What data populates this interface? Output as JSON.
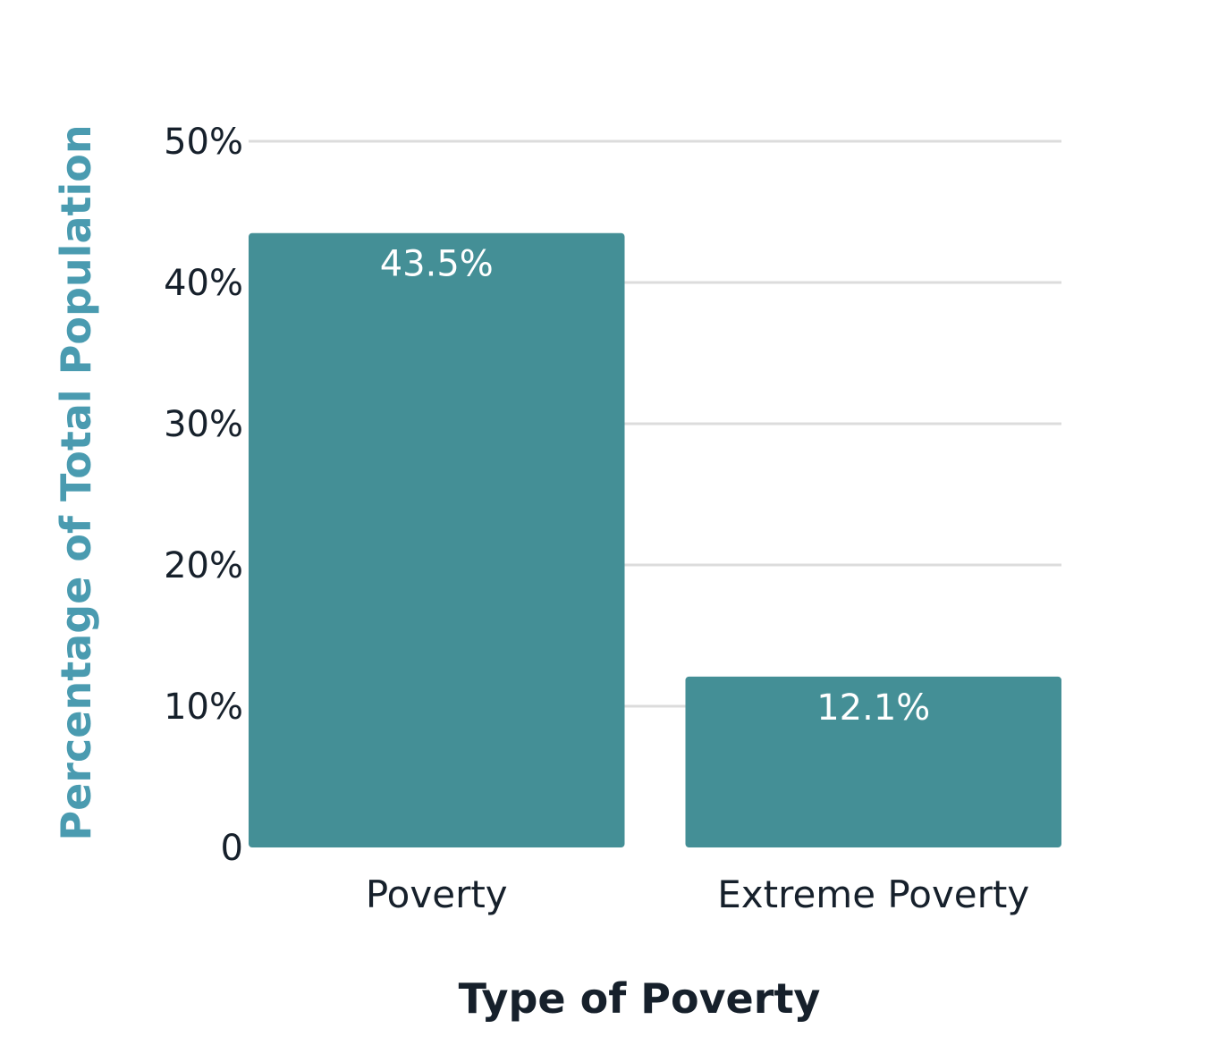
{
  "chart_data": {
    "type": "bar",
    "title": "",
    "xlabel": "Type of Poverty",
    "ylabel": "Percentage of Total Population",
    "categories": [
      "Poverty",
      "Extreme Poverty"
    ],
    "values": [
      43.5,
      12.1
    ],
    "data_labels": [
      "43.5%",
      "12.1%"
    ],
    "ylim": [
      0,
      50
    ],
    "yticks": [
      0,
      10,
      20,
      30,
      40,
      50
    ],
    "ytick_labels": [
      "0",
      "10%",
      "20%",
      "30%",
      "40%",
      "50%"
    ],
    "grid": true,
    "legend": "none",
    "colors": {
      "bar": "#448f96",
      "ylabel": "#4a9bb0",
      "text": "#16202b",
      "grid": "#dcdcdc"
    }
  }
}
